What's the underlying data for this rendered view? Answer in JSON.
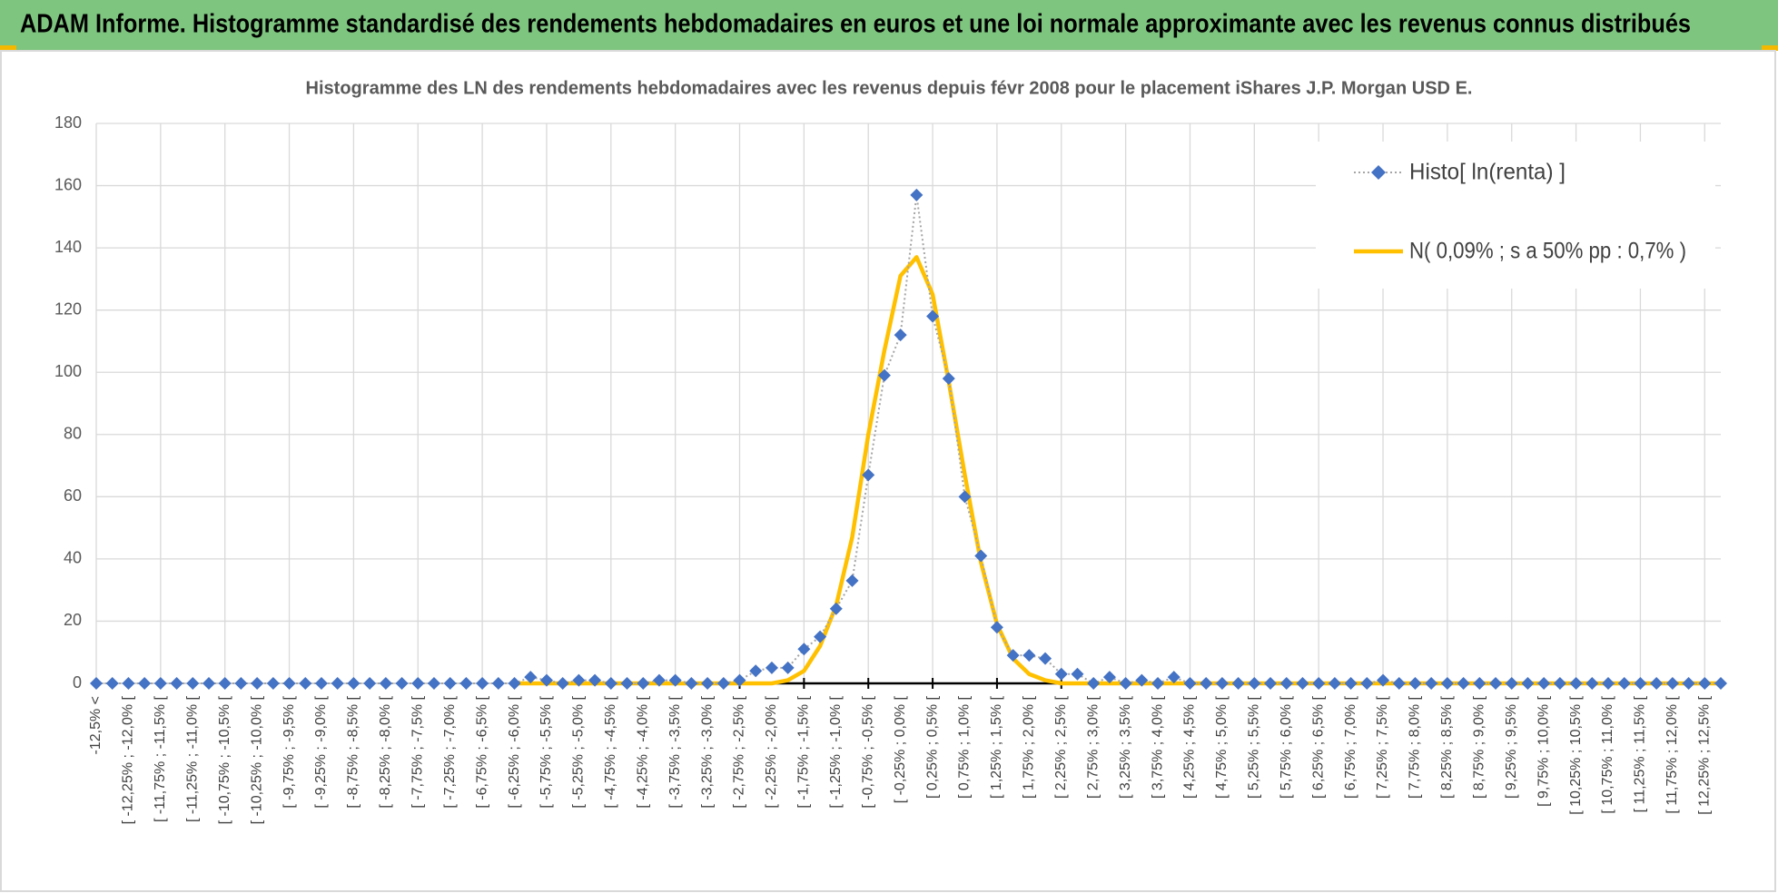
{
  "header": {
    "title": "ADAM Informe. Histogramme standardisé des rendements hebdomadaires en euros et une loi normale approximante avec les revenus connus distribués"
  },
  "chart_data": {
    "type": "line",
    "title": "Histogramme  des LN des rendements  hebdomadaires avec les revenus depuis févr 2008 pour le placement iShares J.P. Morgan USD E.",
    "categories": [
      "-12,5% <",
      null,
      "[ -12,25% ; -12,0% [",
      null,
      "[ -11,75% ; -11,5% [",
      null,
      "[ -11,25% ; -11,0% [",
      null,
      "[ -10,75% ; -10,5% [",
      null,
      "[ -10,25% ; -10,0% [",
      null,
      "[ -9,75% ; -9,5% [",
      null,
      "[ -9,25% ; -9,0% [",
      null,
      "[ -8,75% ; -8,5% [",
      null,
      "[ -8,25% ; -8,0% [",
      null,
      "[ -7,75% ; -7,5% [",
      null,
      "[ -7,25% ; -7,0% [",
      null,
      "[ -6,75% ; -6,5% [",
      null,
      "[ -6,25% ; -6,0% [",
      null,
      "[ -5,75% ; -5,5% [",
      null,
      "[ -5,25% ; -5,0% [",
      null,
      "[ -4,75% ; -4,5% [",
      null,
      "[ -4,25% ; -4,0% [",
      null,
      "[ -3,75% ; -3,5% [",
      null,
      "[ -3,25% ; -3,0% [",
      null,
      "[ -2,75% ; -2,5% [",
      null,
      "[ -2,25% ; -2,0% [",
      null,
      "[ -1,75% ; -1,5% [",
      null,
      "[ -1,25% ; -1,0% [",
      null,
      "[ -0,75% ; -0,5% [",
      null,
      "[ -0,25% ; 0,0% [",
      null,
      "[ 0,25% ; 0,5% [",
      null,
      "[ 0,75% ; 1,0% [",
      null,
      "[ 1,25% ; 1,5% [",
      null,
      "[ 1,75% ; 2,0% [",
      null,
      "[ 2,25% ; 2,5% [",
      null,
      "[ 2,75% ; 3,0% [",
      null,
      "[ 3,25% ; 3,5% [",
      null,
      "[ 3,75% ; 4,0% [",
      null,
      "[ 4,25% ; 4,5% [",
      null,
      "[ 4,75% ; 5,0% [",
      null,
      "[ 5,25% ; 5,5% [",
      null,
      "[ 5,75% ; 6,0% [",
      null,
      "[ 6,25% ; 6,5% [",
      null,
      "[ 6,75% ; 7,0% [",
      null,
      "[ 7,25% ; 7,5% [",
      null,
      "[ 7,75% ; 8,0% [",
      null,
      "[ 8,25% ; 8,5% [",
      null,
      "[ 8,75% ; 9,0% [",
      null,
      "[ 9,25% ; 9,5% [",
      null,
      "[ 9,75% ; 10,0% [",
      null,
      "[ 10,25% ; 10,5% [",
      null,
      "[ 10,75% ; 11,0% [",
      null,
      "[ 11,25% ; 11,5% [",
      null,
      "[ 11,75% ; 12,0% [",
      null,
      "[ 12,25% ; 12,5% [",
      null
    ],
    "series": [
      {
        "name": "Histo[ ln(renta) ]",
        "color": "#4472c4",
        "line_color": "#a5a5a5",
        "values": [
          0,
          0,
          0,
          0,
          0,
          0,
          0,
          0,
          0,
          0,
          0,
          0,
          0,
          0,
          0,
          0,
          0,
          0,
          0,
          0,
          0,
          0,
          0,
          0,
          0,
          0,
          0,
          2,
          1,
          0,
          1,
          1,
          0,
          0,
          0,
          1,
          1,
          0,
          0,
          0,
          1,
          4,
          5,
          5,
          11,
          15,
          24,
          33,
          67,
          99,
          112,
          157,
          118,
          98,
          60,
          41,
          18,
          9,
          9,
          8,
          3,
          3,
          0,
          2,
          0,
          1,
          0,
          2,
          0,
          0,
          0,
          0,
          0,
          0,
          0,
          0,
          0,
          0,
          0,
          0,
          1,
          0,
          0,
          0,
          0,
          0,
          0,
          0,
          0,
          0,
          0,
          0,
          0,
          0,
          0,
          0,
          0,
          0,
          0,
          0,
          0,
          0
        ]
      },
      {
        "name": "N( 0,09% ; s a 50% pp : 0,7% )",
        "color": "#ffc000",
        "values": [
          null,
          null,
          null,
          null,
          null,
          null,
          null,
          null,
          null,
          null,
          null,
          null,
          null,
          null,
          null,
          null,
          null,
          null,
          null,
          null,
          null,
          null,
          null,
          null,
          null,
          null,
          0,
          0,
          0,
          0,
          0,
          0,
          0,
          0,
          0,
          0,
          0,
          0,
          0,
          0,
          0,
          0,
          0,
          1,
          4,
          12,
          25,
          47,
          80,
          107,
          131,
          137,
          125,
          97,
          67,
          39,
          19,
          8,
          3,
          1,
          0,
          0,
          0,
          0,
          0,
          0,
          0,
          0,
          0,
          0,
          0,
          0,
          0,
          0,
          0,
          0,
          0,
          0,
          0,
          0,
          0,
          0,
          0,
          0,
          0,
          0,
          0,
          0,
          0,
          0,
          0,
          0,
          0,
          0,
          0,
          0,
          0,
          0,
          0,
          0,
          0,
          0
        ]
      }
    ],
    "ylim": [
      0,
      180
    ],
    "yticks": [
      0,
      20,
      40,
      60,
      80,
      100,
      120,
      140,
      160,
      180
    ],
    "grid": true,
    "legend": "top-right"
  }
}
